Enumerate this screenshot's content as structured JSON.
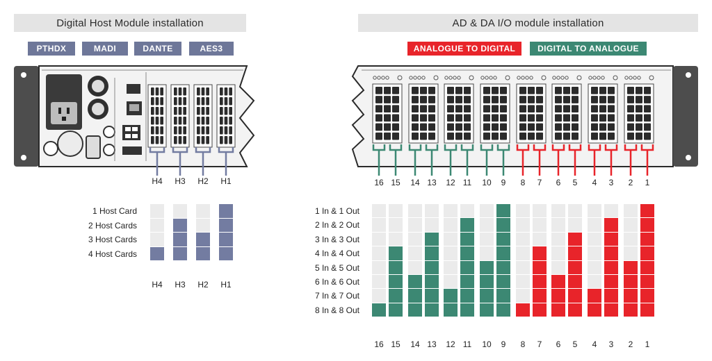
{
  "left_panel": {
    "title": "Digital Host Module installation",
    "tags": [
      "PTHDX",
      "MADI",
      "DANTE",
      "AES3"
    ],
    "slots": [
      "H4",
      "H3",
      "H2",
      "H1"
    ],
    "rows": [
      "1 Host Card",
      "2 Host Cards",
      "3 Host Cards",
      "4 Host Cards"
    ],
    "bar_color": "#737ca1",
    "fill_levels": [
      1,
      3,
      2,
      4
    ]
  },
  "right_panel": {
    "title": "AD & DA I/O module installation",
    "legend_ad": "ANALOGUE TO DIGITAL",
    "legend_da": "DIGITAL TO ANALOGUE",
    "ad_color": "#e8242a",
    "da_color": "#3c8873",
    "slots": [
      "16",
      "15",
      "14",
      "13",
      "12",
      "11",
      "10",
      "9",
      "8",
      "7",
      "6",
      "5",
      "4",
      "3",
      "2",
      "1"
    ],
    "rows": [
      "1 In & 1 Out",
      "2 In & 2 Out",
      "3 In & 3 Out",
      "4 In & 4 Out",
      "5 In & 5 Out",
      "6 In & 6 Out",
      "7 In & 7 Out",
      "8 In & 8 Out"
    ],
    "fill_levels": [
      1,
      5,
      3,
      6,
      2,
      7,
      4,
      8,
      1,
      5,
      3,
      6,
      2,
      7,
      4,
      8
    ]
  }
}
